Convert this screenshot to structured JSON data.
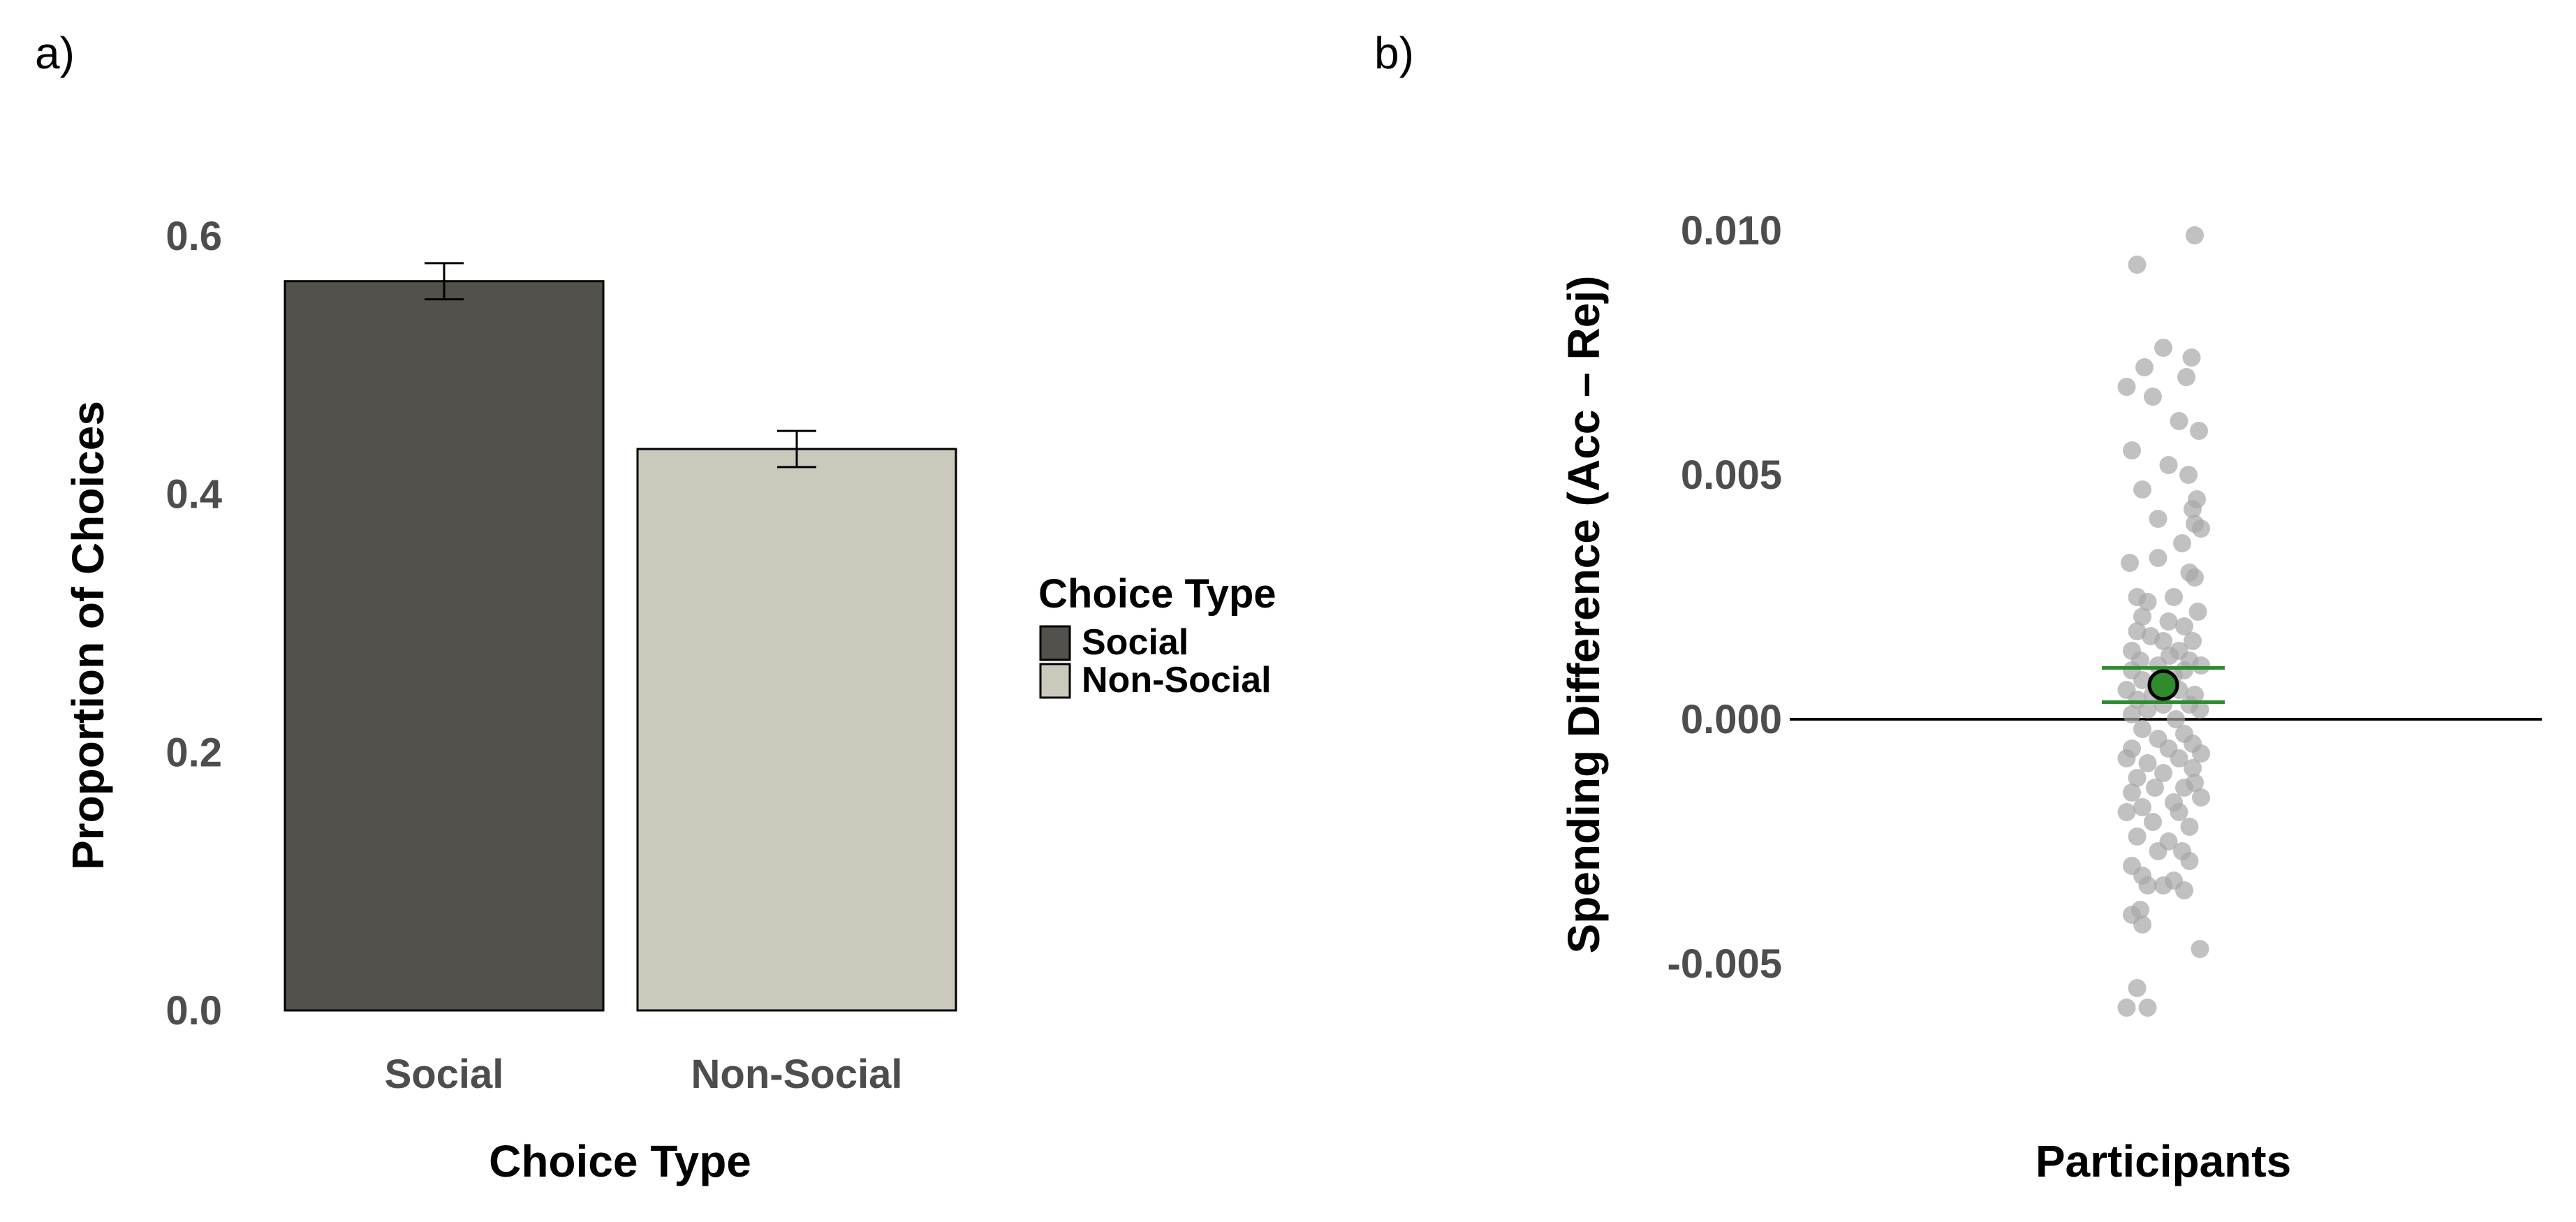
{
  "panels": {
    "a": {
      "label": "a)"
    },
    "b": {
      "label": "b)"
    }
  },
  "chart_data": [
    {
      "type": "bar",
      "panel": "a)",
      "title": "",
      "categories": [
        "Social",
        "Non-Social"
      ],
      "values": [
        0.565,
        0.435
      ],
      "error": [
        0.014,
        0.014
      ],
      "colors": [
        "#52514b",
        "#cbc9bb"
      ],
      "xlabel": "Choice Type",
      "ylabel": "Proportion of Choices",
      "ylim": [
        0,
        0.6
      ],
      "yticks": [
        0.0,
        0.2,
        0.4,
        0.6
      ],
      "ytick_labels": [
        "0.0",
        "0.2",
        "0.4",
        "0.6"
      ],
      "legend": {
        "title": "Choice Type",
        "position": "right",
        "entries": [
          {
            "label": "Social",
            "color": "#52514b"
          },
          {
            "label": "Non-Social",
            "color": "#cbc9bb"
          }
        ]
      },
      "grid": false
    },
    {
      "type": "scatter",
      "panel": "b)",
      "title": "",
      "xlabel": "Participants",
      "ylabel": "Spending Difference (Acc – Rej)",
      "ylim": [
        -0.006,
        0.01
      ],
      "yticks": [
        -0.005,
        0.0,
        0.005,
        0.01
      ],
      "ytick_labels": [
        "-0.005",
        "0.000",
        "0.005",
        "0.010"
      ],
      "reference_line": 0.0,
      "summary": {
        "mean": 0.0007,
        "ci_low": 0.00035,
        "ci_high": 0.00105,
        "color": "#2e8b2e"
      },
      "point_color": "#a6a6a6",
      "grid": false,
      "points": [
        [
          0.3,
          0.0099
        ],
        [
          -0.25,
          0.0093
        ],
        [
          0.0,
          0.0076
        ],
        [
          0.27,
          0.0074
        ],
        [
          -0.18,
          0.0072
        ],
        [
          0.22,
          0.007
        ],
        [
          -0.35,
          0.0068
        ],
        [
          -0.1,
          0.0066
        ],
        [
          0.15,
          0.0061
        ],
        [
          0.34,
          0.0059
        ],
        [
          -0.3,
          0.0055
        ],
        [
          0.05,
          0.0052
        ],
        [
          0.24,
          0.005
        ],
        [
          -0.2,
          0.0047
        ],
        [
          0.32,
          0.0045
        ],
        [
          0.28,
          0.0043
        ],
        [
          -0.05,
          0.0041
        ],
        [
          0.3,
          0.004
        ],
        [
          0.36,
          0.0039
        ],
        [
          0.18,
          0.0036
        ],
        [
          -0.32,
          0.0032
        ],
        [
          -0.05,
          0.0033
        ],
        [
          0.25,
          0.003
        ],
        [
          0.3,
          0.0029
        ],
        [
          -0.25,
          0.0025
        ],
        [
          0.1,
          0.0025
        ],
        [
          -0.15,
          0.0024
        ],
        [
          0.33,
          0.0022
        ],
        [
          -0.2,
          0.0021
        ],
        [
          0.05,
          0.002
        ],
        [
          0.2,
          0.0019
        ],
        [
          -0.25,
          0.0018
        ],
        [
          -0.12,
          0.0017
        ],
        [
          0.0,
          0.0016
        ],
        [
          0.28,
          0.0016
        ],
        [
          -0.3,
          0.0014
        ],
        [
          0.15,
          0.0014
        ],
        [
          0.06,
          0.0013
        ],
        [
          -0.22,
          0.0012
        ],
        [
          0.25,
          0.0012
        ],
        [
          -0.05,
          0.0011
        ],
        [
          0.36,
          0.0011
        ],
        [
          -0.3,
          0.001
        ],
        [
          0.2,
          0.001
        ],
        [
          0.1,
          0.0009
        ],
        [
          -0.2,
          0.0008
        ],
        [
          -0.35,
          0.0006
        ],
        [
          0.15,
          0.0006
        ],
        [
          -0.1,
          0.0005
        ],
        [
          0.3,
          0.0005
        ],
        [
          -0.25,
          0.0004
        ],
        [
          0.0,
          0.0003
        ],
        [
          0.25,
          0.0003
        ],
        [
          -0.15,
          0.0002
        ],
        [
          0.35,
          0.0002
        ],
        [
          -0.3,
          0.0001
        ],
        [
          0.12,
          0.0
        ],
        [
          -0.2,
          -0.0002
        ],
        [
          0.2,
          -0.0003
        ],
        [
          -0.05,
          -0.0004
        ],
        [
          0.28,
          -0.0005
        ],
        [
          -0.3,
          -0.0006
        ],
        [
          0.05,
          -0.0006
        ],
        [
          0.36,
          -0.0007
        ],
        [
          -0.35,
          -0.0008
        ],
        [
          0.15,
          -0.0008
        ],
        [
          -0.15,
          -0.0009
        ],
        [
          0.28,
          -0.001
        ],
        [
          0.0,
          -0.0011
        ],
        [
          -0.25,
          -0.0012
        ],
        [
          0.3,
          -0.0013
        ],
        [
          -0.08,
          -0.0014
        ],
        [
          0.2,
          -0.0014
        ],
        [
          -0.3,
          -0.0015
        ],
        [
          0.36,
          -0.0016
        ],
        [
          0.1,
          -0.0017
        ],
        [
          -0.2,
          -0.0018
        ],
        [
          -0.35,
          -0.0019
        ],
        [
          0.15,
          -0.0019
        ],
        [
          -0.1,
          -0.0021
        ],
        [
          0.25,
          -0.0022
        ],
        [
          -0.25,
          -0.0024
        ],
        [
          0.05,
          -0.0025
        ],
        [
          -0.05,
          -0.0027
        ],
        [
          0.18,
          -0.0027
        ],
        [
          -0.3,
          -0.003
        ],
        [
          0.25,
          -0.0029
        ],
        [
          -0.2,
          -0.0032
        ],
        [
          0.1,
          -0.0033
        ],
        [
          0.0,
          -0.0034
        ],
        [
          -0.15,
          -0.0034
        ],
        [
          0.2,
          -0.0035
        ],
        [
          -0.22,
          -0.0039
        ],
        [
          -0.3,
          -0.004
        ],
        [
          -0.2,
          -0.0042
        ],
        [
          0.35,
          -0.0047
        ],
        [
          -0.25,
          -0.0055
        ],
        [
          -0.35,
          -0.0059
        ],
        [
          -0.15,
          -0.0059
        ]
      ]
    }
  ]
}
